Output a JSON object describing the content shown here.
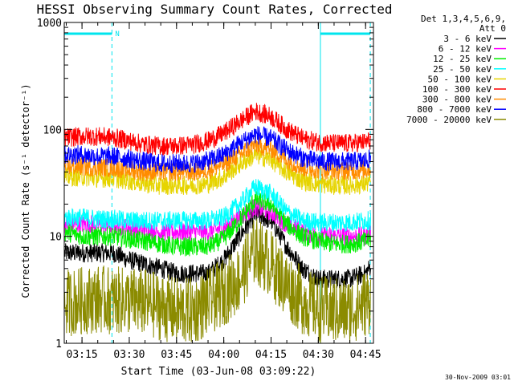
{
  "chart_data": {
    "type": "line",
    "title": "HESSI Observing Summary Count Rates, Corrected",
    "xlabel": "Start Time (03-Jun-08 03:09:22)",
    "ylabel": "Corrected Count Rate (s⁻¹ detector⁻¹)",
    "timestamp": "30-Nov-2009 03:01",
    "yscale": "log",
    "xlim": [
      "03:09:22",
      "04:47:30"
    ],
    "ylim": [
      1,
      1000
    ],
    "x_ticks": [
      "03:15",
      "03:30",
      "03:45",
      "04:00",
      "04:15",
      "04:30",
      "04:45"
    ],
    "y_ticks": [
      "1",
      "10",
      "100",
      "1000"
    ],
    "legend_title": [
      "Det 1,3,4,5,6,9,",
      "Att 0"
    ],
    "legend_placement": "right",
    "flags": {
      "label": "N",
      "segments": [
        {
          "start": "03:09:22",
          "end": "03:24:30"
        },
        {
          "start": "04:30:40",
          "end": "04:46:30"
        }
      ],
      "vlines_solid": [
        "03:09:22",
        "04:30:40"
      ],
      "vlines_dashed": [
        "03:24:30",
        "04:46:30"
      ],
      "color": "#00e5ee"
    },
    "x": [
      "03:10",
      "03:15",
      "03:20",
      "03:25",
      "03:30",
      "03:35",
      "03:40",
      "03:45",
      "03:50",
      "03:55",
      "04:00",
      "04:05",
      "04:10",
      "04:15",
      "04:20",
      "04:25",
      "04:30",
      "04:35",
      "04:40",
      "04:45",
      "04:47"
    ],
    "series": [
      {
        "name": "3 - 6 keV",
        "color": "#000000",
        "values": [
          7,
          7,
          7,
          7,
          6,
          5.5,
          5,
          4.5,
          4.5,
          4.5,
          6,
          10,
          16,
          14,
          8,
          5,
          4,
          4,
          4,
          4.5,
          5.5
        ]
      },
      {
        "name": "6 - 12 keV",
        "color": "#ff00ff",
        "values": [
          13,
          13,
          13,
          12.5,
          12,
          11.5,
          11,
          11,
          11,
          11,
          12,
          15,
          19,
          17,
          13,
          11,
          10,
          10,
          10,
          10,
          11
        ]
      },
      {
        "name": "12 - 25 keV",
        "color": "#00ee00",
        "values": [
          11,
          10,
          10,
          10,
          9.5,
          9,
          8.5,
          8,
          8,
          8,
          9.5,
          14,
          22,
          20,
          13,
          10,
          9,
          8.5,
          8.5,
          9,
          9.5
        ]
      },
      {
        "name": "25 - 50 keV",
        "color": "#00ffff",
        "values": [
          15,
          15,
          14.5,
          14.5,
          14,
          14,
          14,
          14,
          14,
          14,
          15,
          20,
          29,
          25,
          17,
          14,
          13.5,
          13.5,
          13.5,
          14,
          14
        ]
      },
      {
        "name": "50 - 100 keV",
        "color": "#e6d400",
        "values": [
          36,
          36,
          35,
          35,
          33,
          31,
          30,
          30,
          30,
          31,
          36,
          47,
          58,
          52,
          40,
          33,
          31,
          30,
          30,
          31,
          33
        ]
      },
      {
        "name": "100 - 300 keV",
        "color": "#ff0000",
        "values": [
          84,
          86,
          86,
          84,
          78,
          72,
          70,
          70,
          72,
          78,
          92,
          118,
          148,
          132,
          100,
          82,
          76,
          74,
          74,
          76,
          80
        ]
      },
      {
        "name": "300 - 800 keV",
        "color": "#ff8c00",
        "values": [
          45,
          45,
          44,
          44,
          42,
          40,
          40,
          40,
          40,
          42,
          47,
          58,
          72,
          66,
          52,
          44,
          42,
          41,
          41,
          42,
          44
        ]
      },
      {
        "name": "800 - 7000 keV",
        "color": "#0000ff",
        "values": [
          58,
          58,
          56,
          56,
          53,
          50,
          48,
          48,
          48,
          51,
          58,
          74,
          90,
          82,
          64,
          54,
          50,
          50,
          50,
          51,
          54
        ]
      },
      {
        "name": "7000 - 20000 keV",
        "color": "#8b8b00",
        "values": [
          2.4,
          2.5,
          2.6,
          2.5,
          2.5,
          2.4,
          2.2,
          2.0,
          2.0,
          2.4,
          3.0,
          4.0,
          7.5,
          5.5,
          3.5,
          2.5,
          2.1,
          2.0,
          2.0,
          2.4,
          2.6
        ]
      }
    ]
  }
}
